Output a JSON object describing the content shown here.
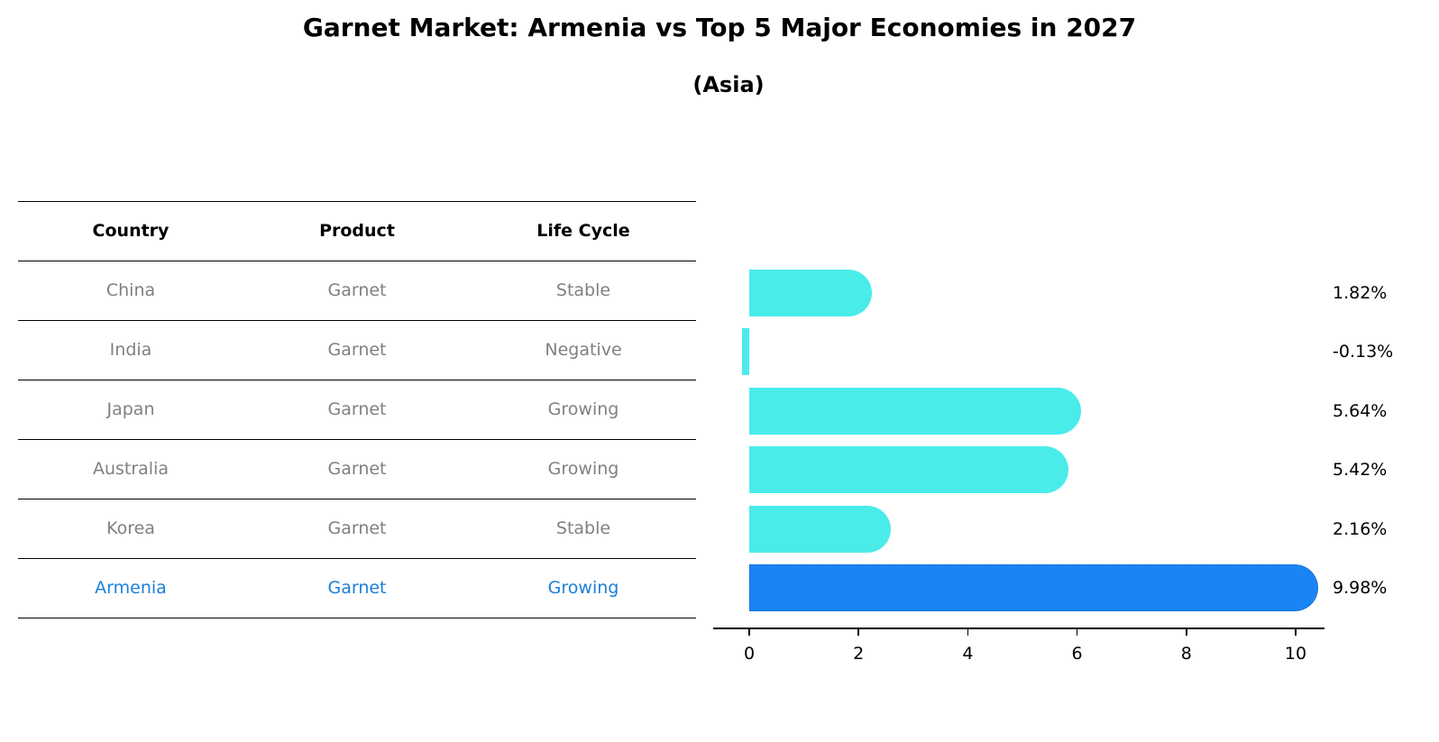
{
  "title": "Garnet Market: Armenia vs Top 5 Major Economies in 2027",
  "subtitle": "(Asia)",
  "table": {
    "headers": [
      "Country",
      "Product",
      "Life Cycle"
    ],
    "rows": [
      {
        "country": "China",
        "product": "Garnet",
        "life_cycle": "Stable"
      },
      {
        "country": "India",
        "product": "Garnet",
        "life_cycle": "Negative"
      },
      {
        "country": "Japan",
        "product": "Garnet",
        "life_cycle": "Growing"
      },
      {
        "country": "Australia",
        "product": "Garnet",
        "life_cycle": "Growing"
      },
      {
        "country": "Korea",
        "product": "Garnet",
        "life_cycle": "Stable"
      },
      {
        "country": "Armenia",
        "product": "Garnet",
        "life_cycle": "Growing"
      }
    ],
    "highlight_row": 5
  },
  "colors": {
    "bar": "#4aecea",
    "highlight_bar": "#1a84f4",
    "highlight_text": "#1a7fd8",
    "muted_text": "#808080"
  },
  "chart_data": {
    "type": "bar",
    "orientation": "horizontal",
    "title": "Garnet Market: Armenia vs Top 5 Major Economies in 2027",
    "subtitle": "(Asia)",
    "categories": [
      "China",
      "India",
      "Japan",
      "Australia",
      "Korea",
      "Armenia"
    ],
    "values": [
      1.82,
      -0.13,
      5.64,
      5.42,
      2.16,
      9.98
    ],
    "value_labels": [
      "1.82%",
      "-0.13%",
      "5.64%",
      "5.42%",
      "2.16%",
      "9.98%"
    ],
    "highlight": "Armenia",
    "xlabel": "",
    "ylabel": "",
    "xticks": [
      "0",
      "2",
      "4",
      "6",
      "8",
      "10"
    ],
    "xlim": [
      -0.65,
      10.5
    ],
    "grid": false,
    "legend": null
  }
}
